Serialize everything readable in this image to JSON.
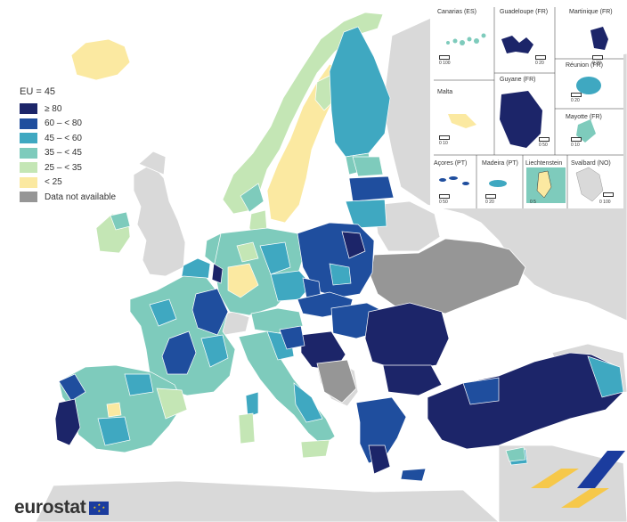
{
  "legend": {
    "title": "EU = 45",
    "classes": [
      {
        "label": "≥ 80",
        "color": "#1c2569"
      },
      {
        "label": "60 – < 80",
        "color": "#1f4e9e"
      },
      {
        "label": "45 – < 60",
        "color": "#3fa8c1"
      },
      {
        "label": "35 – < 45",
        "color": "#7ecbbc"
      },
      {
        "label": "25 – < 35",
        "color": "#c4e6b5"
      },
      {
        "label": "< 25",
        "color": "#fbe9a1"
      },
      {
        "label": "Data not available",
        "color": "#969696"
      }
    ]
  },
  "insets": {
    "canarias": "Canarias (ES)",
    "guadeloupe": "Guadeloupe (FR)",
    "martinique": "Martinique (FR)",
    "reunion": "Réunion (FR)",
    "malta": "Malta",
    "guyane": "Guyane (FR)",
    "mayotte": "Mayotte (FR)",
    "acores": "Açores (PT)",
    "madeira": "Madeira (PT)",
    "liechtenstein": "Liechtenstein",
    "svalbard": "Svalbard (NO)"
  },
  "scales": {
    "canarias": "0   100",
    "guadeloupe": "0   20",
    "martinique": "0   20",
    "reunion": "0   20",
    "malta": "0   10",
    "guyane": "0   50",
    "mayotte": "0   10",
    "acores": "0   50",
    "madeira": "0   20",
    "liechtenstein": "0   5",
    "svalbard": "0 100"
  },
  "branding": {
    "logo_text": "eurostat",
    "flag_color": "#1b3c9e",
    "stripe_colors": [
      "#f6c84a",
      "#1b3c9e"
    ]
  },
  "colors": {
    "sea": "#ffffff",
    "non_eu_land": "#d9d9d9",
    "borders": "#ffffff"
  }
}
